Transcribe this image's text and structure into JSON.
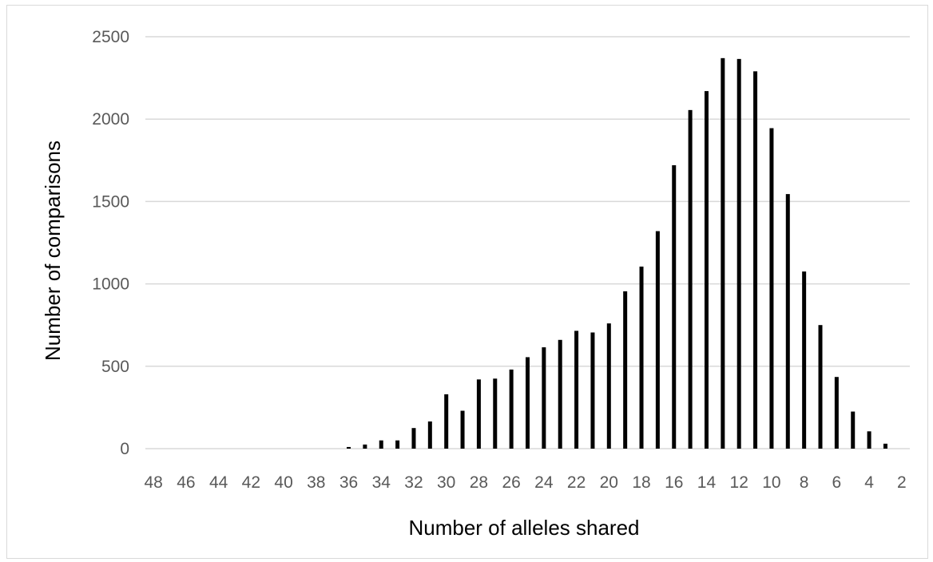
{
  "chart_data": {
    "type": "bar",
    "title": "",
    "xlabel": "Number of alleles shared",
    "ylabel": "Number of comparisons",
    "categories": [
      48,
      47,
      46,
      45,
      44,
      43,
      42,
      41,
      40,
      39,
      38,
      37,
      36,
      35,
      34,
      33,
      32,
      31,
      30,
      29,
      28,
      27,
      26,
      25,
      24,
      23,
      22,
      21,
      20,
      19,
      18,
      17,
      16,
      15,
      14,
      13,
      12,
      11,
      10,
      9,
      8,
      7,
      6,
      5,
      4,
      3,
      2
    ],
    "x_tick_labels": [
      "48",
      "46",
      "44",
      "42",
      "40",
      "38",
      "36",
      "34",
      "32",
      "30",
      "28",
      "26",
      "24",
      "22",
      "20",
      "18",
      "16",
      "14",
      "12",
      "10",
      "8",
      "6",
      "4",
      "2"
    ],
    "values": [
      0,
      0,
      0,
      0,
      0,
      0,
      0,
      0,
      0,
      0,
      0,
      0,
      10,
      25,
      50,
      50,
      125,
      165,
      330,
      230,
      420,
      425,
      480,
      555,
      615,
      660,
      715,
      705,
      760,
      955,
      1105,
      1320,
      1720,
      2055,
      2170,
      2370,
      2365,
      2290,
      1945,
      1545,
      1075,
      750,
      435,
      225,
      105,
      30,
      0
    ],
    "ylim": [
      0,
      2500
    ],
    "y_ticks": [
      "0",
      "500",
      "1000",
      "1500",
      "2000",
      "2500"
    ],
    "grid": true,
    "legend": "none",
    "colors": {
      "bar": "#000000",
      "grid": "#d9d9d9",
      "tick_text": "#595959",
      "title_text": "#000000"
    }
  }
}
